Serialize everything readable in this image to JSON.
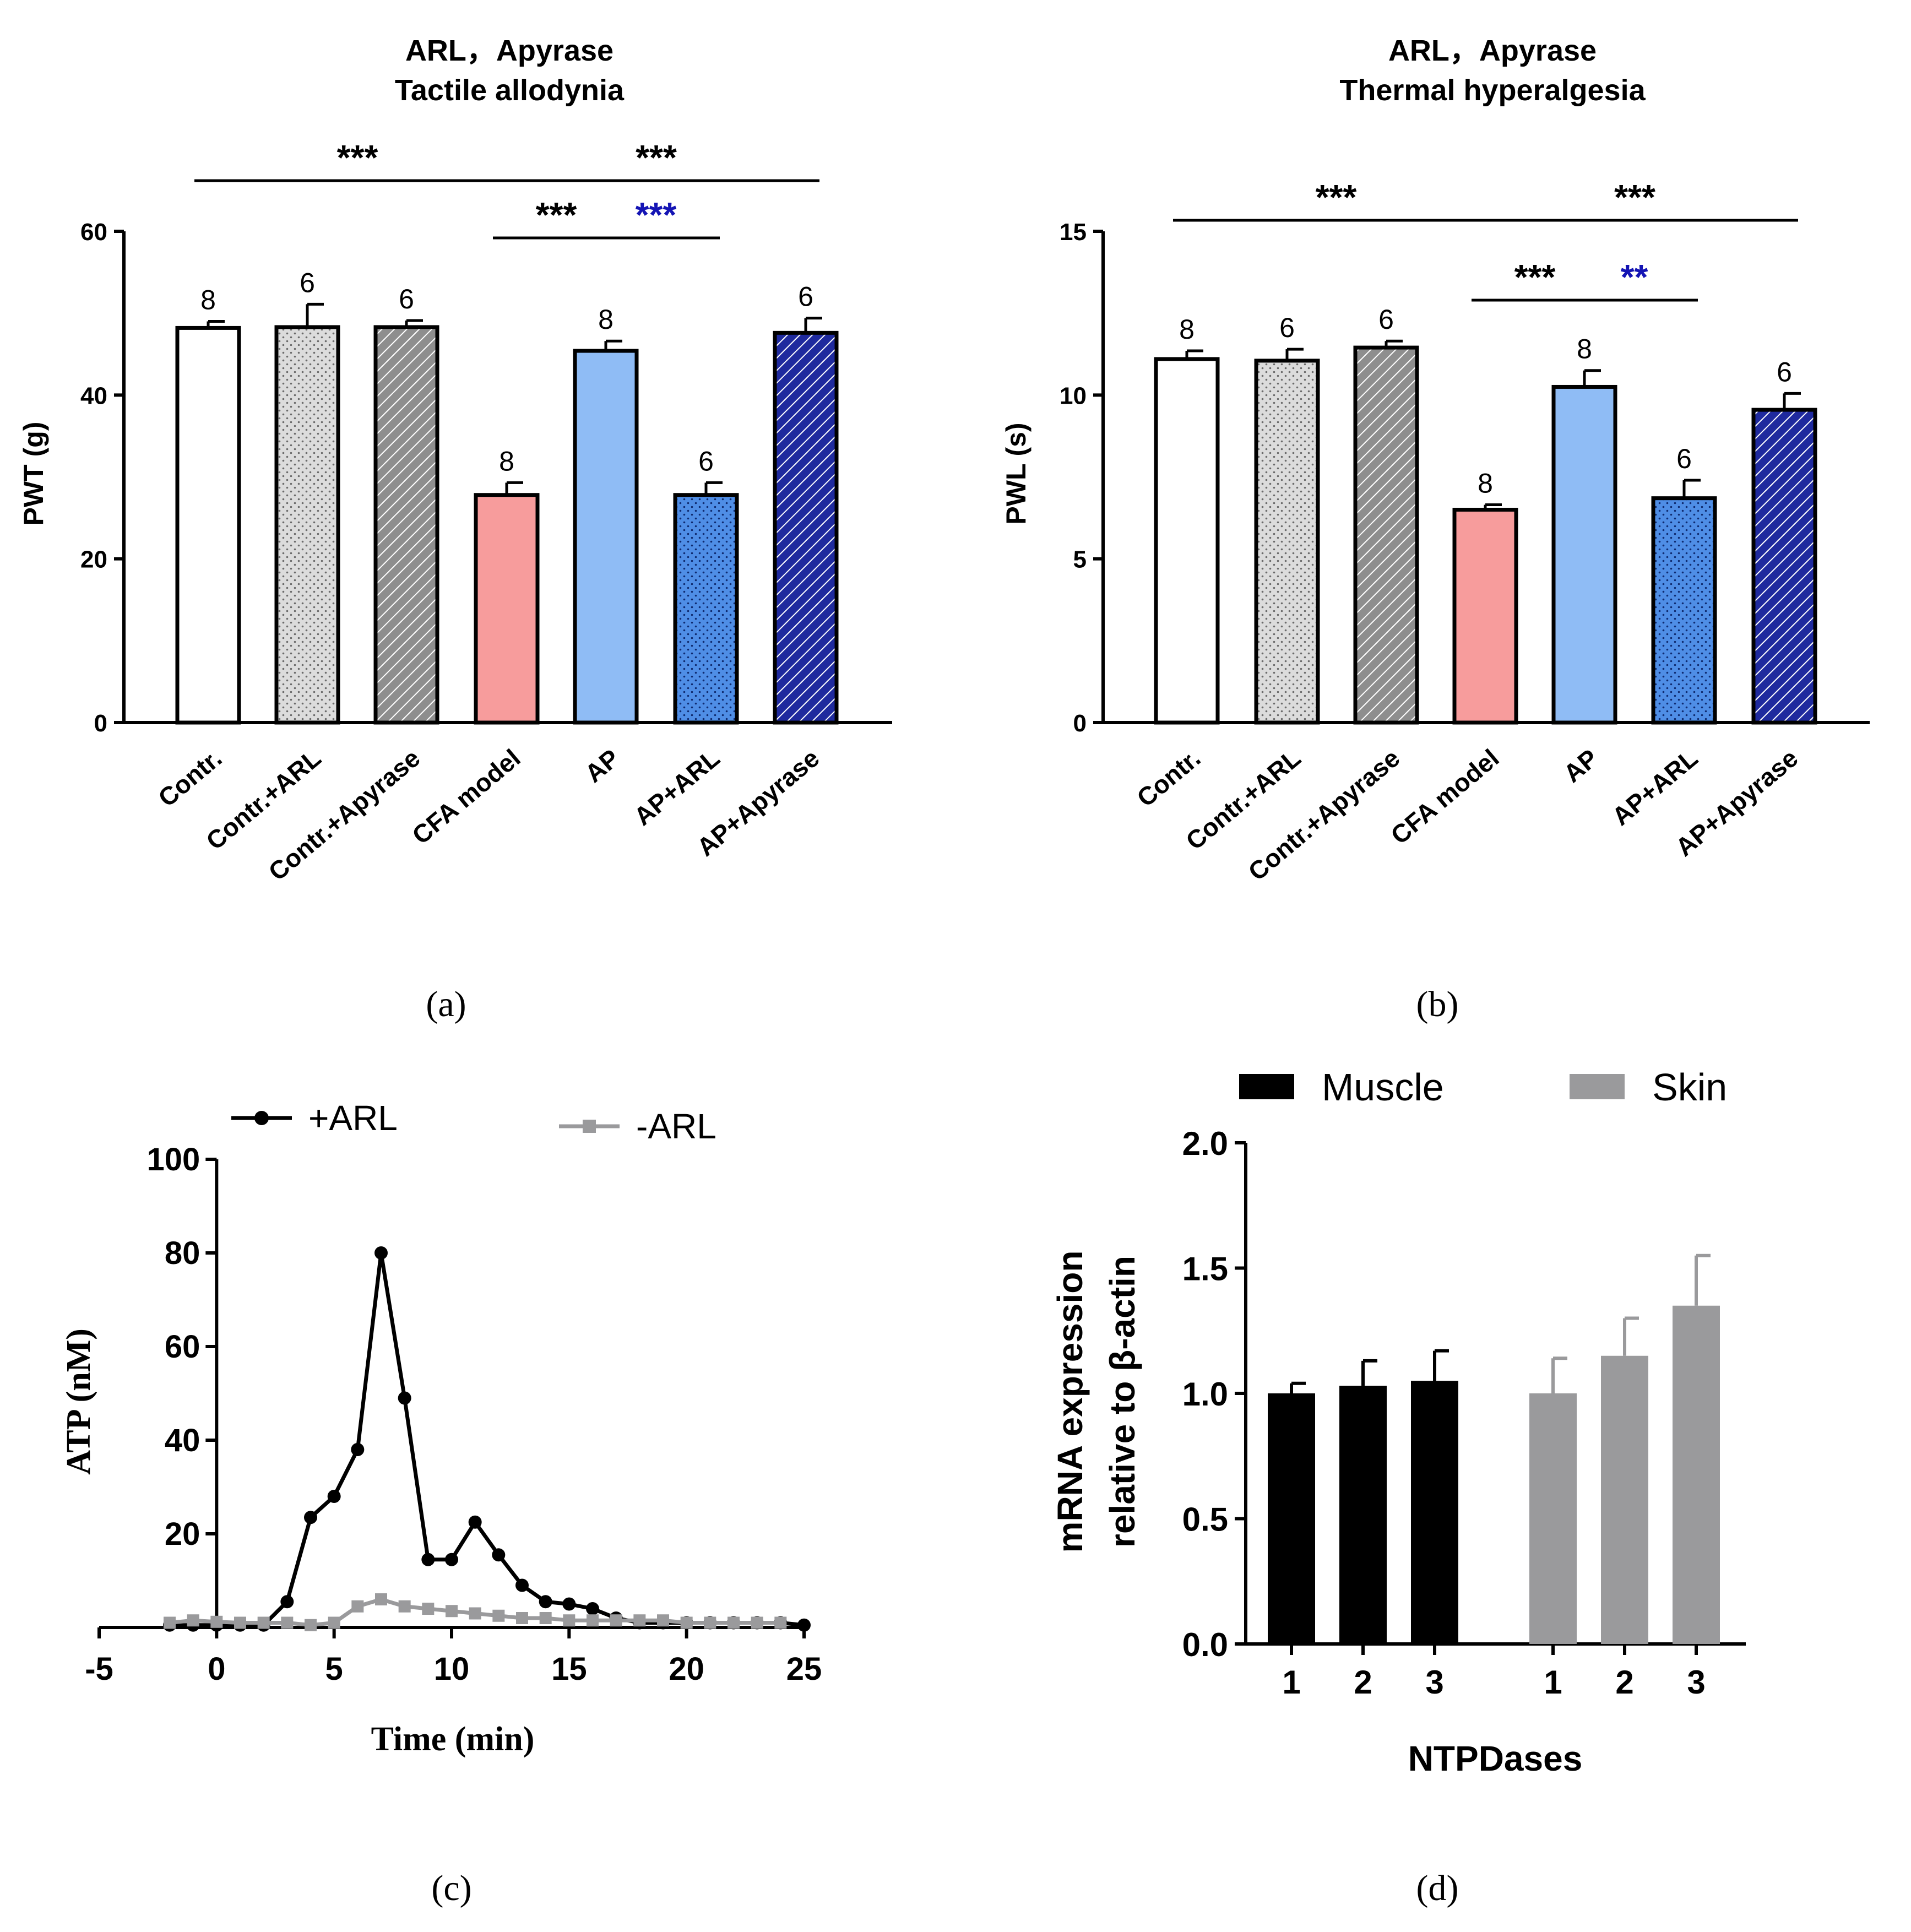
{
  "colors": {
    "axis": "#000000",
    "white": "#ffffff",
    "lightgray": "#d9d9d9",
    "darkgray": "#8c8c8c",
    "pink": "#f79c9c",
    "lightblue": "#8fbcf5",
    "blue": "#4f8ee6",
    "navy": "#1f2a9e",
    "sig_blue": "#1414b4",
    "gray_series": "#9a9a9c",
    "black_series": "#000000"
  },
  "panel_labels": {
    "a": "(a)",
    "b": "(b)",
    "c": "(c)",
    "d": "(d)"
  },
  "chart_data": [
    {
      "type": "bar",
      "panel": "a",
      "title": "ARL，Apyrase",
      "subtitle": "Tactile allodynia",
      "xlabel": "",
      "ylabel": "PWT (g)",
      "ylim": [
        0,
        60
      ],
      "yticks": [
        0,
        20,
        40,
        60
      ],
      "categories": [
        "Contr.",
        "Contr.+ARL",
        "Contr.+Apyrase",
        "CFA model",
        "AP",
        "AP+ARL",
        "AP+Apyrase"
      ],
      "values": [
        48.2,
        48.3,
        48.3,
        27.8,
        45.4,
        27.8,
        47.6
      ],
      "errors": [
        0.8,
        2.8,
        0.8,
        1.5,
        1.2,
        1.5,
        1.8
      ],
      "n": [
        "8",
        "6",
        "6",
        "8",
        "8",
        "6",
        "6"
      ],
      "fill_patterns": [
        "white",
        "dots-light",
        "hatch-gray",
        "pink",
        "lightblue",
        "dots-blue",
        "hatch-navy"
      ],
      "significance": [
        {
          "from": 0,
          "to": 3,
          "label": "***",
          "color": "black",
          "level": 1
        },
        {
          "from": 3,
          "to": 6,
          "label": "***",
          "color": "black",
          "level": 1
        },
        {
          "from": 3,
          "to": 4,
          "label": "***",
          "color": "black",
          "level": 0
        },
        {
          "from": 4,
          "to": 5,
          "label": "***",
          "color": "blue",
          "level": 0
        }
      ]
    },
    {
      "type": "bar",
      "panel": "b",
      "title": "ARL，Apyrase",
      "subtitle": "Thermal hyperalgesia",
      "xlabel": "",
      "ylabel": "PWL (s)",
      "ylim": [
        0,
        15
      ],
      "yticks": [
        0,
        5,
        10,
        15
      ],
      "categories": [
        "Contr.",
        "Contr.+ARL",
        "Contr.+Apyrase",
        "CFA model",
        "AP",
        "AP+ARL",
        "AP+Apyrase"
      ],
      "values": [
        11.1,
        11.05,
        11.45,
        6.5,
        10.25,
        6.85,
        9.55
      ],
      "errors": [
        0.25,
        0.35,
        0.2,
        0.15,
        0.5,
        0.55,
        0.5
      ],
      "n": [
        "8",
        "6",
        "6",
        "8",
        "8",
        "6",
        "6"
      ],
      "fill_patterns": [
        "white",
        "dots-light",
        "hatch-gray",
        "pink",
        "lightblue",
        "dots-blue",
        "hatch-navy"
      ],
      "significance": [
        {
          "from": 0,
          "to": 3,
          "label": "***",
          "color": "black",
          "level": 1
        },
        {
          "from": 3,
          "to": 6,
          "label": "***",
          "color": "black",
          "level": 1
        },
        {
          "from": 3,
          "to": 4,
          "label": "***",
          "color": "black",
          "level": 0
        },
        {
          "from": 4,
          "to": 5,
          "label": "**",
          "color": "blue",
          "level": 0
        }
      ]
    },
    {
      "type": "line",
      "panel": "c",
      "title": "",
      "xlabel": "Time (min)",
      "ylabel": "ATP (nM)",
      "xlim": [
        -5,
        25
      ],
      "ylim": [
        0,
        100
      ],
      "xticks": [
        -5,
        0,
        5,
        10,
        15,
        20,
        25
      ],
      "yticks": [
        20,
        40,
        60,
        80,
        100
      ],
      "series": [
        {
          "name": "+ARL",
          "marker": "circle",
          "color": "black",
          "x": [
            -2,
            -1,
            0,
            1,
            2,
            3,
            4,
            5,
            6,
            7,
            8,
            9,
            10,
            11,
            12,
            13,
            14,
            15,
            16,
            17,
            18,
            19,
            20,
            21,
            22,
            23,
            24,
            25
          ],
          "y": [
            0.5,
            0.5,
            0.5,
            0.5,
            0.5,
            5.5,
            23.5,
            28,
            38,
            80,
            49,
            14.5,
            14.5,
            22.5,
            15.5,
            9,
            5.5,
            5,
            4,
            2,
            1,
            1,
            1,
            1,
            1,
            1,
            1,
            0.5
          ]
        },
        {
          "name": "-ARL",
          "marker": "square",
          "color": "gray",
          "x": [
            -2,
            -1,
            0,
            1,
            2,
            3,
            4,
            5,
            6,
            7,
            8,
            9,
            10,
            11,
            12,
            13,
            14,
            15,
            16,
            17,
            18,
            19,
            20,
            21,
            22,
            23,
            24
          ],
          "y": [
            1,
            1.5,
            1.2,
            1,
            1,
            1,
            0.5,
            1,
            4.5,
            6,
            4.5,
            4,
            3.5,
            3,
            2.5,
            2,
            2,
            1.5,
            1.5,
            1.5,
            1.5,
            1.5,
            1,
            1,
            1,
            1,
            1
          ]
        }
      ]
    },
    {
      "type": "bar",
      "panel": "d",
      "title": "",
      "xlabel": "NTPDases",
      "ylabel_line1": "mRNA expression",
      "ylabel_line2": "relative to β-actin",
      "ylim": [
        0,
        2.0
      ],
      "yticks": [
        "0.0",
        "0.5",
        "1.0",
        "1.5",
        "2.0"
      ],
      "categories": [
        "1",
        "2",
        "3"
      ],
      "series": [
        {
          "name": "Muscle",
          "color": "black",
          "values": [
            1.0,
            1.03,
            1.05
          ],
          "errors": [
            0.04,
            0.1,
            0.12
          ]
        },
        {
          "name": "Skin",
          "color": "gray",
          "values": [
            1.0,
            1.15,
            1.35
          ],
          "errors": [
            0.14,
            0.15,
            0.2
          ]
        }
      ]
    }
  ]
}
